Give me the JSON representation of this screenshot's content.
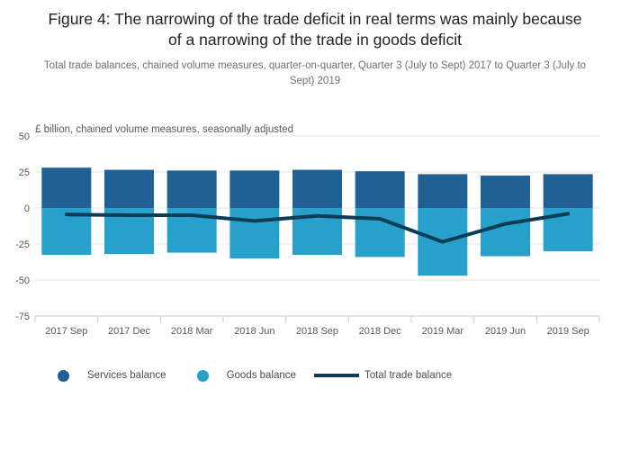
{
  "header": {
    "title": "Figure 4: The narrowing of the trade deficit in real terms was mainly because of a narrowing of the trade in goods deficit",
    "subtitle": "Total trade balances, chained volume measures, quarter-on-quarter, Quarter 3 (July to Sept) 2017 to Quarter 3 (July to Sept) 2019"
  },
  "chart_data": {
    "type": "bar",
    "subtype": "stacked-bars-with-line",
    "title": "",
    "axis_top_label": "£ billion, chained volume measures, seasonally adjusted",
    "xlabel": "",
    "ylabel": "£ billion",
    "categories": [
      "2017 Sep",
      "2017 Dec",
      "2018 Mar",
      "2018 Jun",
      "2018 Sep",
      "2018 Dec",
      "2019 Mar",
      "2019 Jun",
      "2019 Sep"
    ],
    "series": [
      {
        "name": "Services balance",
        "kind": "bar",
        "color": "#206095",
        "values": [
          28,
          26.5,
          26,
          26,
          26.5,
          25.5,
          23.5,
          22.5,
          23.5
        ]
      },
      {
        "name": "Goods balance",
        "kind": "bar",
        "color": "#27a0cc",
        "values": [
          -32.5,
          -32,
          -31,
          -35,
          -32.5,
          -34,
          -47,
          -33.5,
          -30
        ]
      },
      {
        "name": "Total trade balance",
        "kind": "line",
        "color": "#0d3c57",
        "values": [
          -4.5,
          -5,
          -5,
          -9,
          -5.5,
          -7.5,
          -23.5,
          -11,
          -4
        ]
      }
    ],
    "y_ticks": [
      50,
      25,
      0,
      -25,
      -50,
      -75
    ],
    "ylim": [
      -75,
      50
    ],
    "grid": true,
    "legend_position": "bottom"
  },
  "legend": {
    "items": [
      {
        "label": "Services balance",
        "marker": "circle",
        "color": "#206095"
      },
      {
        "label": "Goods balance",
        "marker": "circle",
        "color": "#27a0cc"
      },
      {
        "label": "Total trade balance",
        "marker": "line",
        "color": "#0d3c57"
      }
    ]
  },
  "colors": {
    "services": "#206095",
    "goods": "#27a0cc",
    "total_line": "#0d3c57",
    "gridline": "#e6e6e6",
    "axis": "#c9c9c9",
    "tick_text": "#595959",
    "title_text": "#222222",
    "subtitle_text": "#707070"
  }
}
